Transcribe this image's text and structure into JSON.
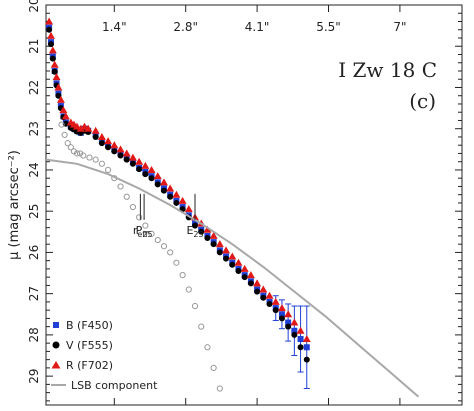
{
  "chart_data": {
    "type": "scatter",
    "title": "I Zw 18 C",
    "panel_label": "(c)",
    "xlabel": "",
    "ylabel": "μ (mag arcsec⁻²)",
    "ylim": [
      29.7,
      20.0
    ],
    "ytick_values": [
      20,
      21,
      22,
      23,
      24,
      25,
      26,
      27,
      28,
      29
    ],
    "ytick_labels": [
      "20",
      "21",
      "22",
      "23",
      "24",
      "25",
      "26",
      "27",
      "28",
      "29"
    ],
    "top_ticks": [
      {
        "x": 0.11,
        "label": "1.4\""
      },
      {
        "x": 0.225,
        "label": "2.8\""
      },
      {
        "x": 0.34,
        "label": "4.1\""
      },
      {
        "x": 0.455,
        "label": "5.5\""
      },
      {
        "x": 0.57,
        "label": "7\""
      }
    ],
    "xlim": [
      0.0,
      0.67
    ],
    "annotations": [
      {
        "text": "r_eff",
        "main": "r",
        "sub": "eff",
        "x": 0.152,
        "y": 25.55
      },
      {
        "text": "P_25",
        "main": "P",
        "sub": "25",
        "x": 0.158,
        "y": 25.55
      },
      {
        "text": "E_25",
        "main": "E",
        "sub": "25",
        "x": 0.24,
        "y": 25.55
      }
    ],
    "legend": {
      "placement": "bottom-left",
      "entries": [
        {
          "label": "B (F450)",
          "marker": "square",
          "color": "#1f3fd6"
        },
        {
          "label": "V (F555)",
          "marker": "circle",
          "color": "#000000"
        },
        {
          "label": "R (F702)",
          "marker": "triangle",
          "color": "#e01818"
        },
        {
          "label": "LSB component",
          "marker": "line",
          "color": "#a8a8a8"
        }
      ]
    },
    "series": [
      {
        "name": "B (F450)",
        "marker": "square",
        "color": "#1f3fd6",
        "points": [
          [
            0.005,
            20.55
          ],
          [
            0.008,
            20.9
          ],
          [
            0.011,
            21.25
          ],
          [
            0.014,
            21.6
          ],
          [
            0.017,
            21.9
          ],
          [
            0.02,
            22.15
          ],
          [
            0.024,
            22.45
          ],
          [
            0.028,
            22.7
          ],
          [
            0.032,
            22.85
          ],
          [
            0.04,
            22.95
          ],
          [
            0.045,
            23.0
          ],
          [
            0.05,
            23.05
          ],
          [
            0.056,
            23.1
          ],
          [
            0.062,
            23.0
          ],
          [
            0.068,
            23.05
          ],
          [
            0.08,
            23.15
          ],
          [
            0.09,
            23.3
          ],
          [
            0.1,
            23.4
          ],
          [
            0.11,
            23.5
          ],
          [
            0.12,
            23.6
          ],
          [
            0.13,
            23.7
          ],
          [
            0.14,
            23.8
          ],
          [
            0.15,
            23.95
          ],
          [
            0.16,
            24.05
          ],
          [
            0.17,
            24.15
          ],
          [
            0.18,
            24.3
          ],
          [
            0.19,
            24.45
          ],
          [
            0.2,
            24.6
          ],
          [
            0.21,
            24.75
          ],
          [
            0.22,
            24.9
          ],
          [
            0.23,
            25.1
          ],
          [
            0.24,
            25.3
          ],
          [
            0.25,
            25.45
          ],
          [
            0.26,
            25.6
          ],
          [
            0.27,
            25.75
          ],
          [
            0.28,
            25.95
          ],
          [
            0.29,
            26.1
          ],
          [
            0.3,
            26.25
          ],
          [
            0.31,
            26.4
          ],
          [
            0.32,
            26.55
          ],
          [
            0.33,
            26.7
          ],
          [
            0.34,
            26.9
          ],
          [
            0.35,
            27.05
          ],
          [
            0.36,
            27.2
          ],
          [
            0.37,
            27.35
          ],
          [
            0.38,
            27.5
          ],
          [
            0.39,
            27.7
          ],
          [
            0.4,
            27.9
          ],
          [
            0.41,
            28.1
          ],
          [
            0.42,
            28.3
          ]
        ],
        "errors": {
          "0.37": 0.3,
          "0.38": 0.35,
          "0.39": 0.45,
          "0.4": 0.6,
          "0.41": 0.8,
          "0.42": 1.0
        }
      },
      {
        "name": "V (F555)",
        "marker": "circle",
        "color": "#000000",
        "points": [
          [
            0.005,
            20.6
          ],
          [
            0.008,
            20.95
          ],
          [
            0.011,
            21.3
          ],
          [
            0.014,
            21.62
          ],
          [
            0.017,
            21.95
          ],
          [
            0.02,
            22.2
          ],
          [
            0.024,
            22.5
          ],
          [
            0.028,
            22.72
          ],
          [
            0.032,
            22.88
          ],
          [
            0.04,
            22.98
          ],
          [
            0.045,
            23.02
          ],
          [
            0.05,
            23.07
          ],
          [
            0.056,
            23.1
          ],
          [
            0.062,
            23.05
          ],
          [
            0.068,
            23.08
          ],
          [
            0.08,
            23.2
          ],
          [
            0.09,
            23.35
          ],
          [
            0.1,
            23.45
          ],
          [
            0.11,
            23.55
          ],
          [
            0.12,
            23.65
          ],
          [
            0.13,
            23.75
          ],
          [
            0.14,
            23.85
          ],
          [
            0.15,
            23.98
          ],
          [
            0.16,
            24.1
          ],
          [
            0.17,
            24.2
          ],
          [
            0.18,
            24.35
          ],
          [
            0.19,
            24.5
          ],
          [
            0.2,
            24.65
          ],
          [
            0.21,
            24.8
          ],
          [
            0.22,
            24.95
          ],
          [
            0.23,
            25.15
          ],
          [
            0.24,
            25.35
          ],
          [
            0.25,
            25.5
          ],
          [
            0.26,
            25.65
          ],
          [
            0.27,
            25.8
          ],
          [
            0.28,
            26.0
          ],
          [
            0.29,
            26.15
          ],
          [
            0.3,
            26.3
          ],
          [
            0.31,
            26.45
          ],
          [
            0.32,
            26.6
          ],
          [
            0.33,
            26.75
          ],
          [
            0.34,
            26.95
          ],
          [
            0.35,
            27.1
          ],
          [
            0.36,
            27.25
          ],
          [
            0.37,
            27.4
          ],
          [
            0.38,
            27.6
          ],
          [
            0.39,
            27.8
          ],
          [
            0.4,
            28.0
          ],
          [
            0.41,
            28.3
          ],
          [
            0.42,
            28.6
          ]
        ]
      },
      {
        "name": "R (F702)",
        "marker": "triangle",
        "color": "#e01818",
        "points": [
          [
            0.005,
            20.4
          ],
          [
            0.008,
            20.75
          ],
          [
            0.011,
            21.1
          ],
          [
            0.014,
            21.45
          ],
          [
            0.017,
            21.75
          ],
          [
            0.02,
            22.0
          ],
          [
            0.024,
            22.3
          ],
          [
            0.028,
            22.55
          ],
          [
            0.032,
            22.7
          ],
          [
            0.04,
            22.85
          ],
          [
            0.045,
            22.9
          ],
          [
            0.05,
            22.95
          ],
          [
            0.056,
            23.0
          ],
          [
            0.062,
            22.95
          ],
          [
            0.068,
            23.0
          ],
          [
            0.08,
            23.05
          ],
          [
            0.09,
            23.2
          ],
          [
            0.1,
            23.3
          ],
          [
            0.11,
            23.4
          ],
          [
            0.12,
            23.5
          ],
          [
            0.13,
            23.6
          ],
          [
            0.14,
            23.7
          ],
          [
            0.15,
            23.8
          ],
          [
            0.16,
            23.9
          ],
          [
            0.17,
            24.0
          ],
          [
            0.18,
            24.15
          ],
          [
            0.19,
            24.3
          ],
          [
            0.2,
            24.45
          ],
          [
            0.21,
            24.6
          ],
          [
            0.22,
            24.75
          ],
          [
            0.23,
            24.95
          ],
          [
            0.24,
            25.15
          ],
          [
            0.25,
            25.3
          ],
          [
            0.26,
            25.45
          ],
          [
            0.27,
            25.6
          ],
          [
            0.28,
            25.8
          ],
          [
            0.29,
            25.95
          ],
          [
            0.3,
            26.1
          ],
          [
            0.31,
            26.25
          ],
          [
            0.32,
            26.4
          ],
          [
            0.33,
            26.55
          ],
          [
            0.34,
            26.75
          ],
          [
            0.35,
            26.9
          ],
          [
            0.36,
            27.05
          ],
          [
            0.37,
            27.2
          ],
          [
            0.38,
            27.35
          ],
          [
            0.39,
            27.5
          ],
          [
            0.4,
            27.7
          ],
          [
            0.41,
            27.9
          ],
          [
            0.42,
            28.1
          ]
        ]
      },
      {
        "name": "open circles",
        "marker": "open-circle",
        "color": "#999999",
        "points": [
          [
            0.025,
            22.9
          ],
          [
            0.03,
            23.15
          ],
          [
            0.035,
            23.35
          ],
          [
            0.04,
            23.45
          ],
          [
            0.045,
            23.55
          ],
          [
            0.05,
            23.6
          ],
          [
            0.055,
            23.6
          ],
          [
            0.06,
            23.65
          ],
          [
            0.07,
            23.7
          ],
          [
            0.08,
            23.75
          ],
          [
            0.09,
            23.85
          ],
          [
            0.1,
            24.0
          ],
          [
            0.11,
            24.2
          ],
          [
            0.12,
            24.4
          ],
          [
            0.13,
            24.65
          ],
          [
            0.14,
            24.9
          ],
          [
            0.15,
            25.15
          ],
          [
            0.16,
            25.35
          ],
          [
            0.17,
            25.55
          ],
          [
            0.18,
            25.7
          ],
          [
            0.19,
            25.85
          ],
          [
            0.2,
            26.0
          ],
          [
            0.21,
            26.25
          ],
          [
            0.22,
            26.55
          ],
          [
            0.23,
            26.9
          ],
          [
            0.24,
            27.3
          ],
          [
            0.25,
            27.8
          ],
          [
            0.26,
            28.3
          ],
          [
            0.27,
            28.8
          ],
          [
            0.28,
            29.3
          ]
        ]
      },
      {
        "name": "LSB component",
        "marker": "line",
        "color": "#a8a8a8",
        "points": [
          [
            0.0,
            23.75
          ],
          [
            0.05,
            23.85
          ],
          [
            0.1,
            24.1
          ],
          [
            0.15,
            24.45
          ],
          [
            0.2,
            24.85
          ],
          [
            0.25,
            25.3
          ],
          [
            0.3,
            25.8
          ],
          [
            0.35,
            26.35
          ],
          [
            0.4,
            26.95
          ],
          [
            0.45,
            27.55
          ],
          [
            0.5,
            28.2
          ],
          [
            0.55,
            28.85
          ],
          [
            0.6,
            29.5
          ]
        ]
      }
    ]
  }
}
